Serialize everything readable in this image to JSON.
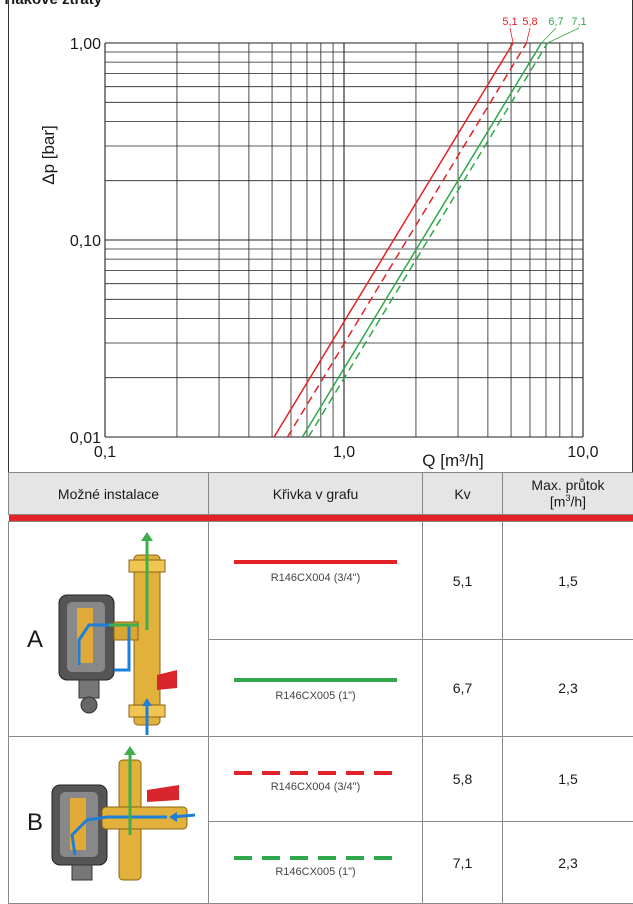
{
  "heading": "Tlakové ztráty",
  "chart_data": {
    "type": "line",
    "x_scale": "log",
    "y_scale": "log",
    "xlim": [
      0.1,
      10.0
    ],
    "ylim": [
      0.01,
      1.0
    ],
    "x_ticks": [
      "0,1",
      "1,0",
      "10,0"
    ],
    "y_ticks": [
      "0,01",
      "0,10",
      "1,00"
    ],
    "xlabel": "Q [m³/h]",
    "ylabel": "Δp [bar]",
    "grid": true,
    "series": [
      {
        "name": "5,1",
        "kv": 5.1,
        "color": "#e32227",
        "dash": "solid",
        "x": [
          0.51,
          5.1
        ],
        "y": [
          0.01,
          1.0
        ]
      },
      {
        "name": "5,8",
        "kv": 5.8,
        "color": "#e32227",
        "dash": "dashed",
        "x": [
          0.58,
          5.8
        ],
        "y": [
          0.01,
          1.0
        ]
      },
      {
        "name": "6,7",
        "kv": 6.7,
        "color": "#2ea84a",
        "dash": "solid",
        "x": [
          0.67,
          6.7
        ],
        "y": [
          0.01,
          1.0
        ]
      },
      {
        "name": "7,1",
        "kv": 7.1,
        "color": "#2ea84a",
        "dash": "dashed",
        "x": [
          0.71,
          7.1
        ],
        "y": [
          0.01,
          1.0
        ]
      }
    ]
  },
  "table": {
    "headers": {
      "install": "Možné instalace",
      "curve": "Křivka v grafu",
      "kv": "Kv",
      "max_flow": "Max. průtok [m³/h]",
      "max_flow_line1": "Max. průtok",
      "max_flow_line2": "[m³/h]"
    },
    "groups": [
      {
        "letter": "A",
        "rows": [
          {
            "curve_label": "R146CX004 (3/4\")",
            "color": "#e32227",
            "dash": "solid",
            "kv": "5,1",
            "max_flow": "1,5"
          },
          {
            "curve_label": "R146CX005 (1\")",
            "color": "#2ea84a",
            "dash": "solid",
            "kv": "6,7",
            "max_flow": "2,3"
          }
        ]
      },
      {
        "letter": "B",
        "rows": [
          {
            "curve_label": "R146CX004 (3/4\")",
            "color": "#e32227",
            "dash": "dashed",
            "kv": "5,8",
            "max_flow": "1,5"
          },
          {
            "curve_label": "R146CX005 (1\")",
            "color": "#2ea84a",
            "dash": "dashed",
            "kv": "7,1",
            "max_flow": "2,3"
          }
        ]
      }
    ]
  }
}
